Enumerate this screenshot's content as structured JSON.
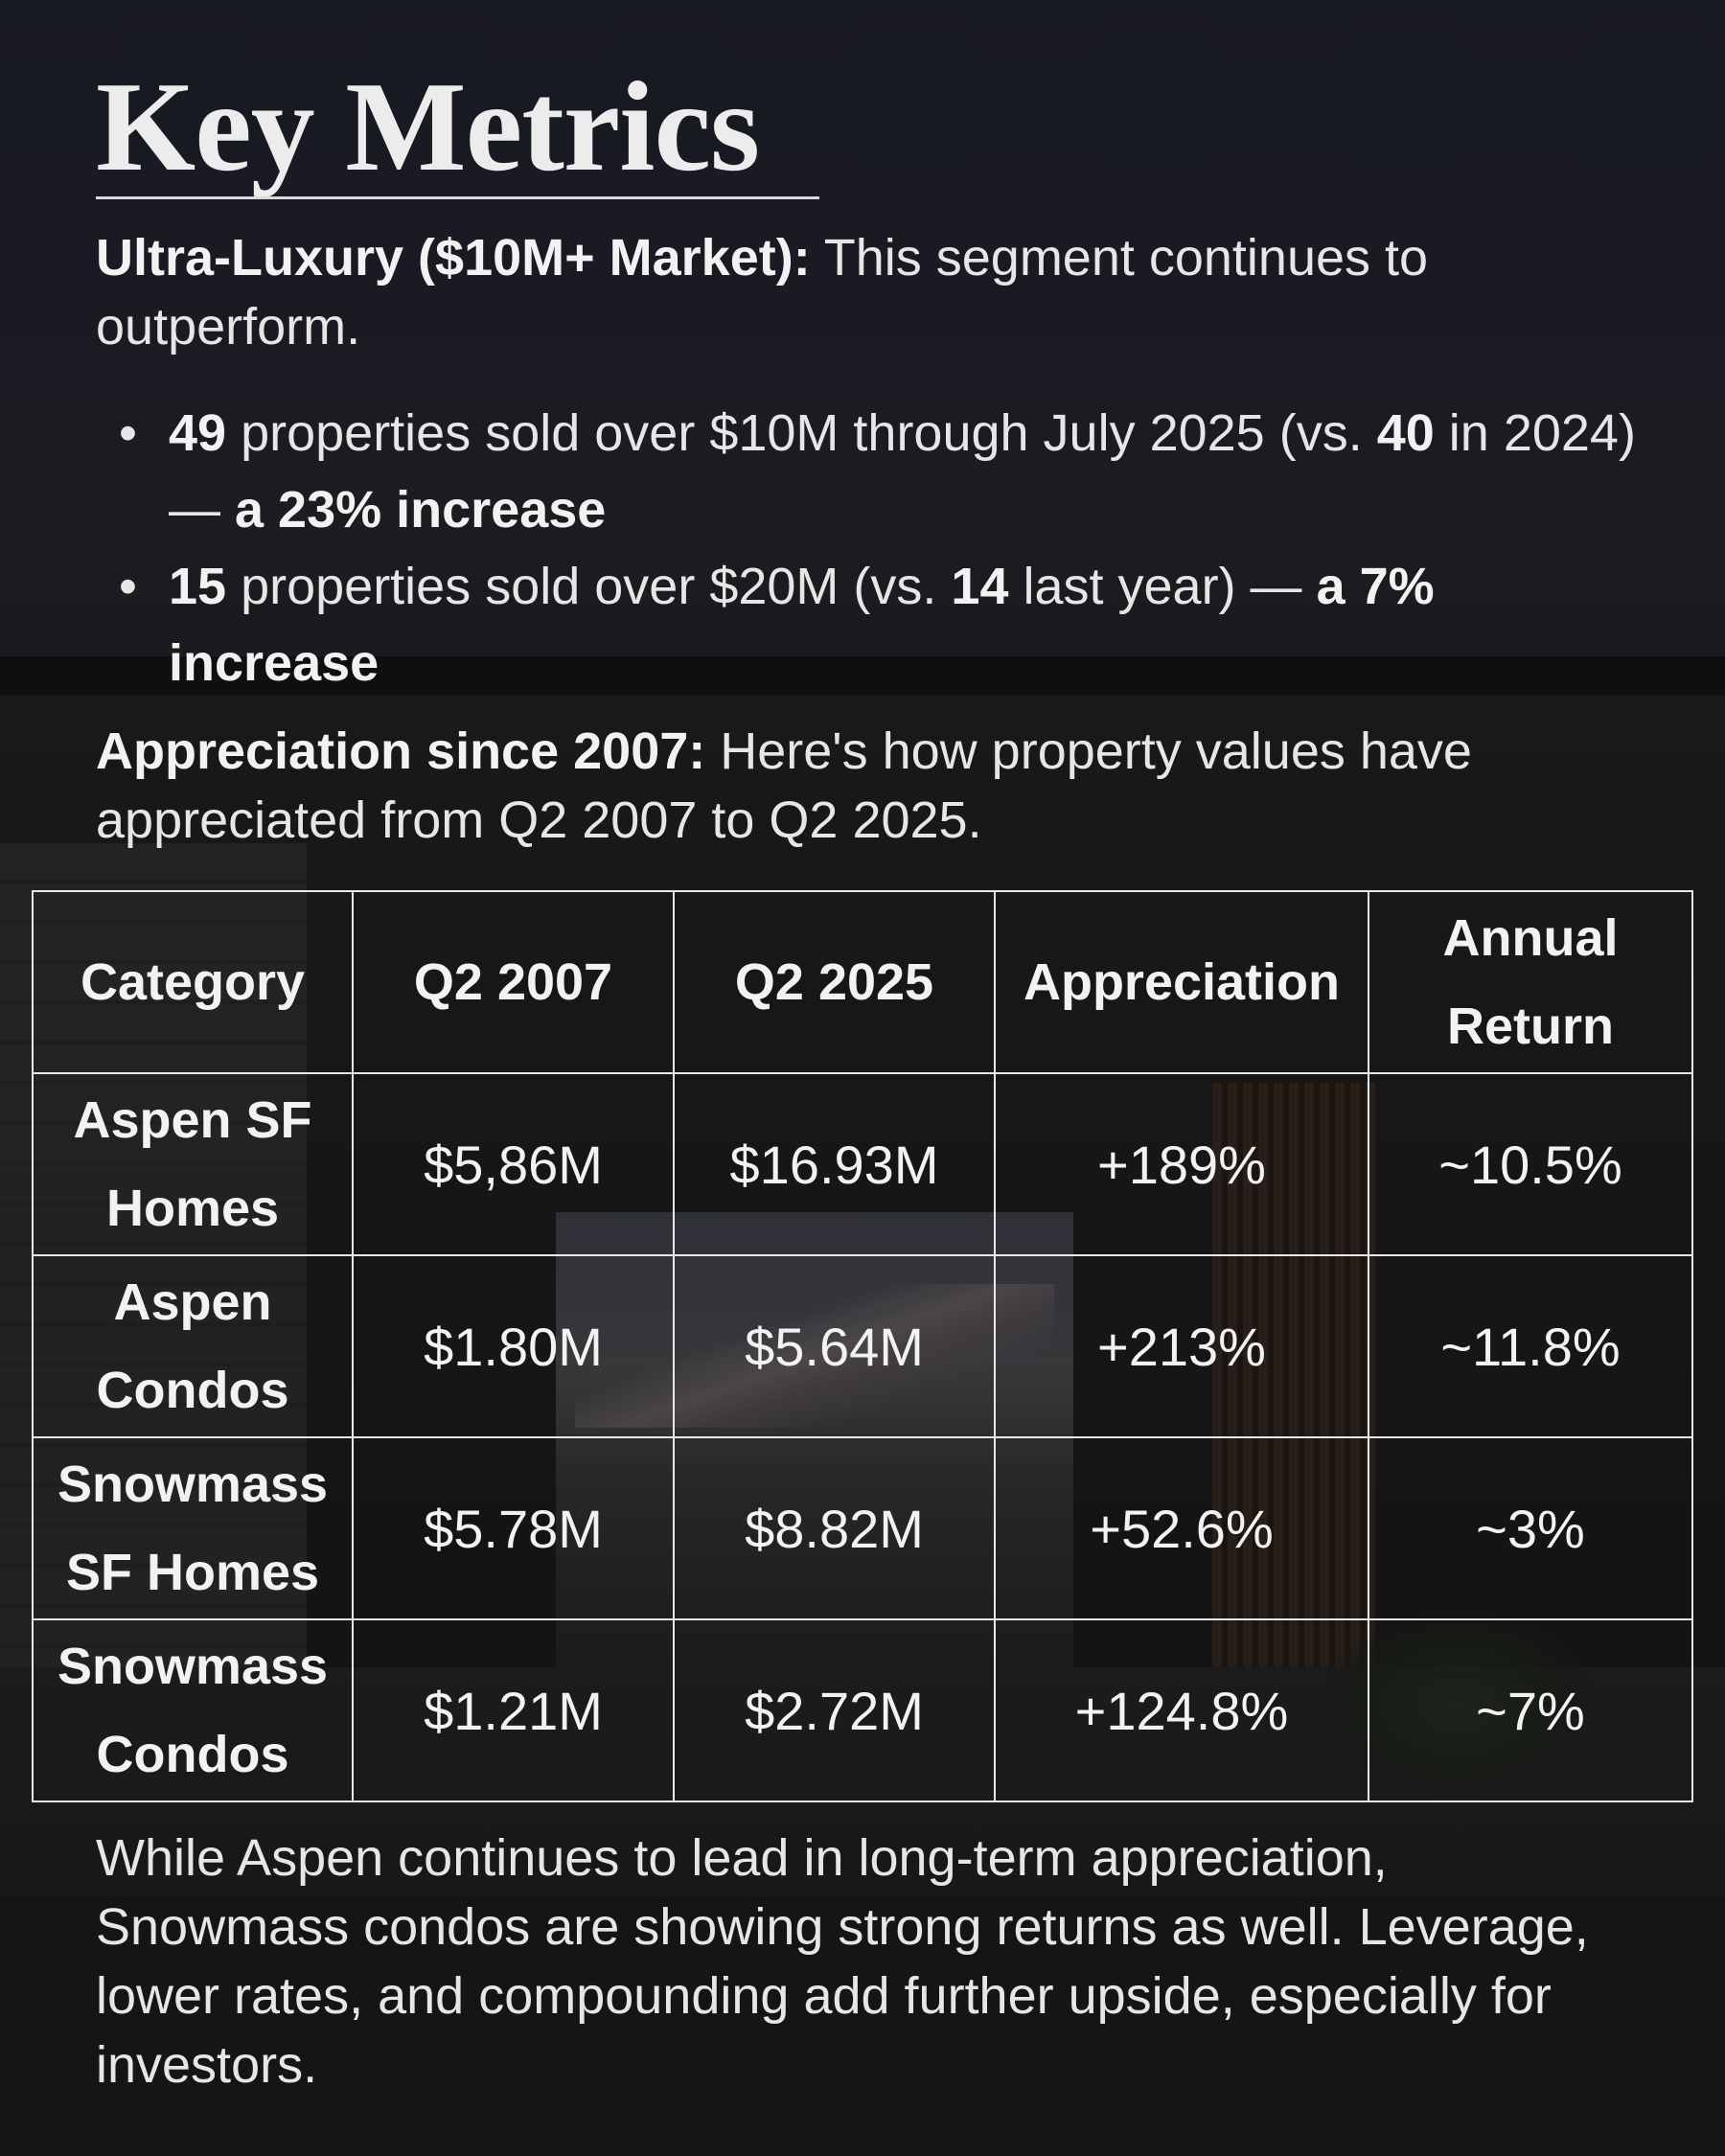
{
  "title": "Key Metrics",
  "intro": {
    "bold": "Ultra-Luxury ($10M+ Market):",
    "text": " This segment continues to outperform."
  },
  "bullets": [
    {
      "n1": "49",
      "t1": " properties sold over $10M through July 2025 (vs. ",
      "n2": "40",
      "t2": " in 2024) — ",
      "em": "a 23% increase"
    },
    {
      "n1": "15",
      "t1": " properties sold over $20M (vs. ",
      "n2": "14",
      "t2": " last year) — ",
      "em": "a 7% increase"
    }
  ],
  "appreciation": {
    "bold": "Appreciation since 2007:",
    "text": " Here's how property values have appreciated from Q2 2007 to Q2 2025."
  },
  "table": {
    "headers": [
      "Category",
      "Q2 2007",
      "Q2 2025",
      "Appreciation",
      "Annual Return"
    ],
    "rows": [
      [
        "Aspen SF Homes",
        "$5,86M",
        "$16.93M",
        "+189%",
        "~10.5%"
      ],
      [
        "Aspen Condos",
        "$1.80M",
        "$5.64M",
        "+213%",
        "~11.8%"
      ],
      [
        "Snowmass SF Homes",
        "$5.78M",
        "$8.82M",
        "+52.6%",
        "~3%"
      ],
      [
        "Snowmass Condos",
        "$1.21M",
        "$2.72M",
        "+124.8%",
        "~7%"
      ]
    ]
  },
  "closing": "While Aspen continues to lead in long-term appreciation, Snowmass condos are showing strong returns as well. Leverage, lower rates, and compounding add further upside, especially for investors."
}
